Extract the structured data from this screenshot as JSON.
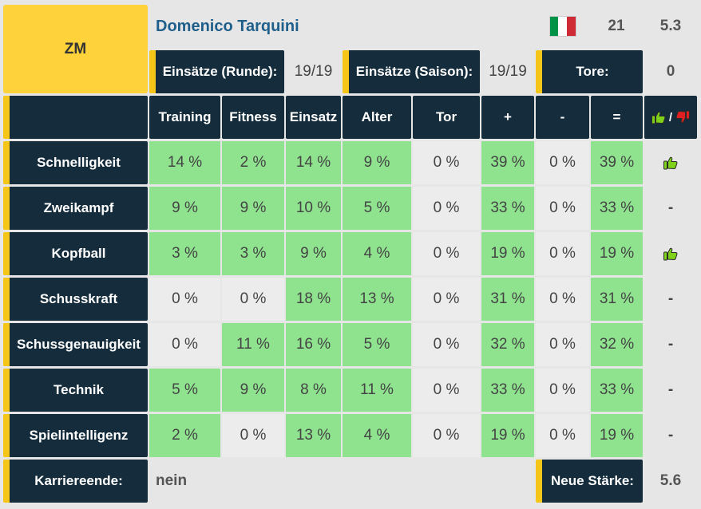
{
  "player": {
    "position": "ZM",
    "name": "Domenico Tarquini",
    "age": "21",
    "rating": "5.3",
    "flag_colors": [
      "#009246",
      "#ffffff",
      "#ce2b37"
    ]
  },
  "stats": {
    "einsaetze_runde_label": "Einsätze (Runde):",
    "einsaetze_runde_value": "19/19",
    "einsaetze_saison_label": "Einsätze (Saison):",
    "einsaetze_saison_value": "19/19",
    "tore_label": "Tore:",
    "tore_value": "0"
  },
  "columns": [
    "Training",
    "Fitness",
    "Einsatz",
    "Alter",
    "Tor",
    "+",
    "-",
    "="
  ],
  "thumbs_header_separator": "/",
  "rows": [
    {
      "label": "Schnelligkeit",
      "values": [
        "14 %",
        "2 %",
        "14 %",
        "9 %",
        "0 %",
        "39 %",
        "0 %",
        "39 %"
      ],
      "trend": "up"
    },
    {
      "label": "Zweikampf",
      "values": [
        "9 %",
        "9 %",
        "10 %",
        "5 %",
        "0 %",
        "33 %",
        "0 %",
        "33 %"
      ],
      "trend": "-"
    },
    {
      "label": "Kopfball",
      "values": [
        "3 %",
        "3 %",
        "9 %",
        "4 %",
        "0 %",
        "19 %",
        "0 %",
        "19 %"
      ],
      "trend": "up"
    },
    {
      "label": "Schusskraft",
      "values": [
        "0 %",
        "0 %",
        "18 %",
        "13 %",
        "0 %",
        "31 %",
        "0 %",
        "31 %"
      ],
      "trend": "-"
    },
    {
      "label": "Schussgenauigkeit",
      "values": [
        "0 %",
        "11 %",
        "16 %",
        "5 %",
        "0 %",
        "32 %",
        "0 %",
        "32 %"
      ],
      "trend": "-"
    },
    {
      "label": "Technik",
      "values": [
        "5 %",
        "9 %",
        "8 %",
        "11 %",
        "0 %",
        "33 %",
        "0 %",
        "33 %"
      ],
      "trend": "-"
    },
    {
      "label": "Spielintelligenz",
      "values": [
        "2 %",
        "0 %",
        "13 %",
        "4 %",
        "0 %",
        "19 %",
        "0 %",
        "19 %"
      ],
      "trend": "-"
    }
  ],
  "footer": {
    "karriereende_label": "Karriereende:",
    "karriereende_value": "nein",
    "neue_staerke_label": "Neue Stärke:",
    "neue_staerke_value": "5.6"
  },
  "colors": {
    "dark": "#142c3b",
    "accent": "#f5c518",
    "green": "#8fe38f",
    "grey": "#ececec",
    "yellow": "#fdd23a",
    "thumb_up": "#7fd11a",
    "thumb_down": "#e02020"
  }
}
